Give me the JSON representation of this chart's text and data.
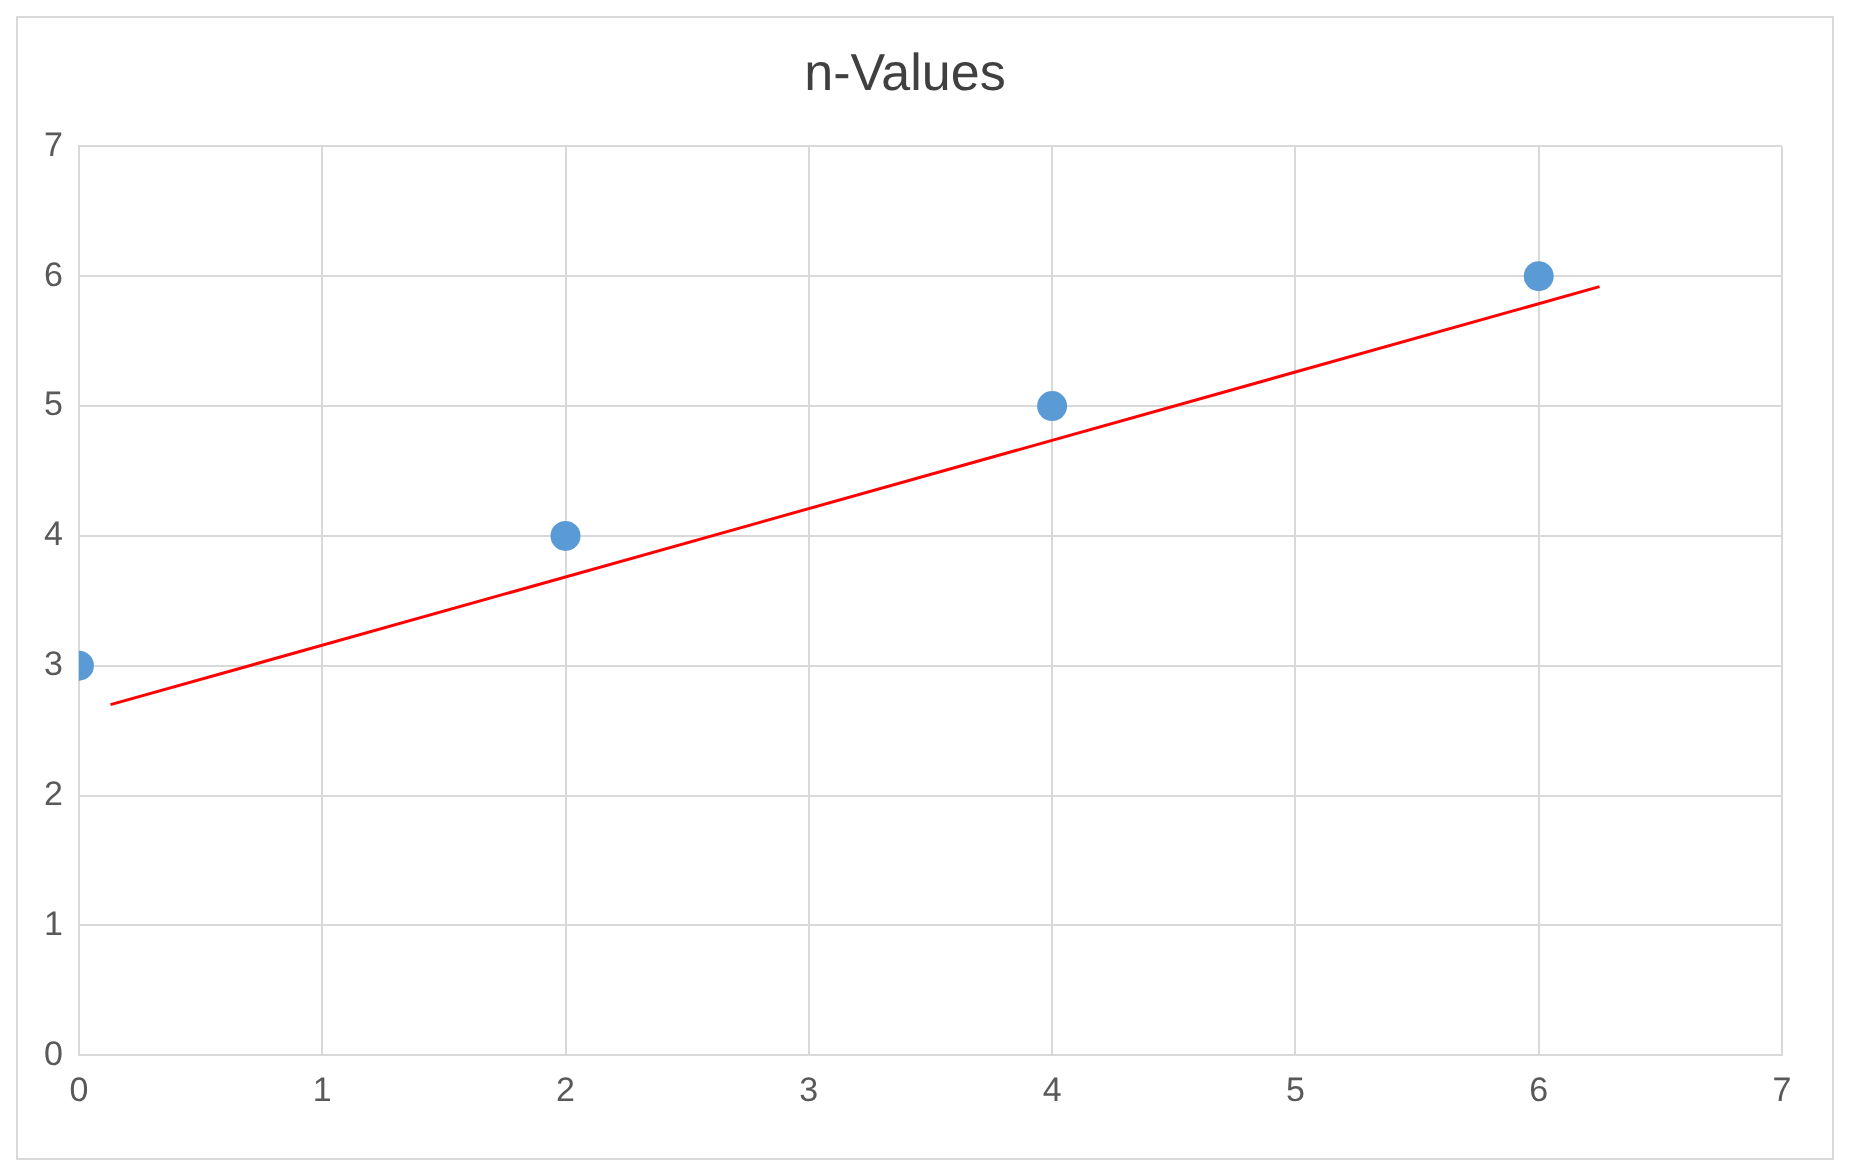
{
  "chart_data": {
    "type": "scatter",
    "title": "n-Values",
    "series": [
      {
        "color": "#5b9bd5",
        "x": [
          0,
          2,
          4,
          6
        ],
        "values": [
          3,
          4,
          5,
          6
        ],
        "marker": "circle"
      },
      {
        "type": "line",
        "color": "#ff0000",
        "x": [
          0.13,
          6.25
        ],
        "values": [
          2.7,
          5.92
        ],
        "marker": "none",
        "line_style": "solid"
      }
    ],
    "xlim": [
      0,
      7
    ],
    "xticks": [
      0,
      1,
      2,
      3,
      4,
      5,
      6,
      7
    ],
    "ylim": [
      0,
      7
    ],
    "yticks": [
      0,
      1,
      2,
      3,
      4,
      5,
      6,
      7
    ],
    "grid": true,
    "legend": false
  }
}
